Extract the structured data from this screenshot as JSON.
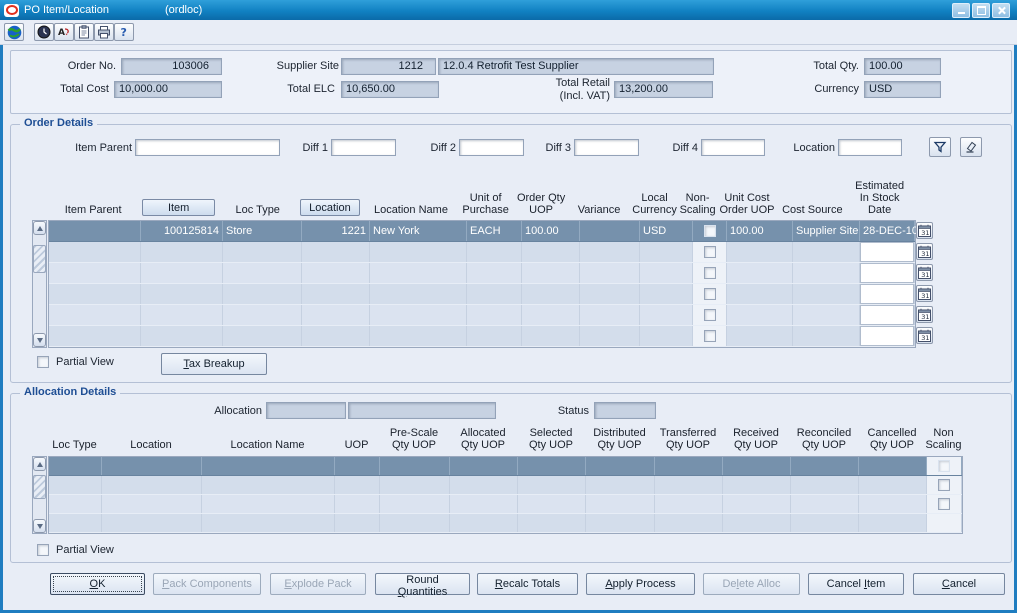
{
  "window": {
    "title": "PO Item/Location",
    "form_id": "(ordloc)"
  },
  "toolbar": {
    "icons": [
      "globe",
      "clock",
      "find",
      "clipboard",
      "print",
      "help"
    ]
  },
  "header": {
    "order_no": {
      "label": "Order No.",
      "value": "103006"
    },
    "supplier_site": {
      "label": "Supplier Site",
      "id": "1212",
      "name": "12.0.4 Retrofit Test Supplier"
    },
    "total_qty": {
      "label": "Total Qty.",
      "value": "100.00"
    },
    "total_cost": {
      "label": "Total Cost",
      "value": "10,000.00"
    },
    "total_elc": {
      "label": "Total ELC",
      "value": "10,650.00"
    },
    "total_retail": {
      "label": "Total Retail\n(Incl. VAT)",
      "value": "13,200.00"
    },
    "currency": {
      "label": "Currency",
      "value": "USD"
    }
  },
  "order_details": {
    "title": "Order Details",
    "filters": {
      "item_parent": "Item Parent",
      "diff1": "Diff 1",
      "diff2": "Diff 2",
      "diff3": "Diff 3",
      "diff4": "Diff 4",
      "location": "Location"
    },
    "columns": {
      "item_parent": "Item Parent",
      "item": "Item",
      "loc_type": "Loc Type",
      "location": "Location",
      "location_name": "Location Name",
      "unit_of_purchase": "Unit of\nPurchase",
      "order_qty_uop": "Order Qty\nUOP",
      "variance": "Variance",
      "local_currency": "Local\nCurrency",
      "non_scaling": "Non-\nScaling",
      "unit_cost_order_uop": "Unit Cost\nOrder UOP",
      "cost_source": "Cost Source",
      "estimated_in_stock_date": "Estimated\nIn Stock\nDate"
    },
    "rows": [
      {
        "selected": true,
        "item_parent": "",
        "item": "100125814",
        "loc_type": "Store",
        "location": "1221",
        "location_name": "New York",
        "unit_of_purchase": "EACH",
        "order_qty_uop": "100.00",
        "variance": "",
        "local_currency": "USD",
        "non_scaling_checked": false,
        "unit_cost_order_uop": "100.00",
        "cost_source": "Supplier Site",
        "estimated_in_stock_date": "28-DEC-10"
      },
      {
        "selected": false
      },
      {
        "selected": false
      },
      {
        "selected": false
      },
      {
        "selected": false
      },
      {
        "selected": false
      }
    ],
    "partial_view": "Partial View",
    "tax_breakup": "Tax Breakup"
  },
  "allocation_details": {
    "title": "Allocation Details",
    "allocation_label": "Allocation",
    "status_label": "Status",
    "columns": {
      "loc_type": "Loc Type",
      "location": "Location",
      "location_name": "Location Name",
      "uop": "UOP",
      "pre_scale_qty_uop": "Pre-Scale\nQty UOP",
      "allocated_qty_uop": "Allocated\nQty UOP",
      "selected_qty_uop": "Selected\nQty UOP",
      "distributed_qty_uop": "Distributed\nQty UOP",
      "transferred_qty_uop": "Transferred\nQty UOP",
      "received_qty_uop": "Received\nQty UOP",
      "reconciled_qty_uop": "Reconciled\nQty UOP",
      "cancelled_qty_uop": "Cancelled\nQty UOP",
      "non_scaling": "Non\nScaling"
    },
    "rows": [
      {
        "selected": true,
        "has_checkbox": true
      },
      {
        "selected": false,
        "has_checkbox": true
      },
      {
        "selected": false,
        "has_checkbox": true
      },
      {
        "selected": false,
        "has_checkbox": false
      }
    ],
    "partial_view": "Partial View"
  },
  "footer": {
    "buttons": [
      {
        "label": "OK",
        "enabled": true,
        "focused": true
      },
      {
        "label": "Pack Components",
        "enabled": false
      },
      {
        "label": "Explode Pack",
        "enabled": false
      },
      {
        "label": "Round Quantities",
        "enabled": true
      },
      {
        "label": "Recalc Totals",
        "enabled": true
      },
      {
        "label": "Apply Process",
        "enabled": true
      },
      {
        "label": "Delete Alloc",
        "enabled": false
      },
      {
        "label": "Cancel Item",
        "enabled": true
      },
      {
        "label": "Cancel",
        "enabled": true
      }
    ]
  },
  "colors": {
    "titlebar_blue": "#1181c2",
    "selected_row": "#7691ac",
    "field_gray": "#c7d2e2",
    "group_title": "#1e4e94",
    "oracle_red": "#e0301e"
  }
}
